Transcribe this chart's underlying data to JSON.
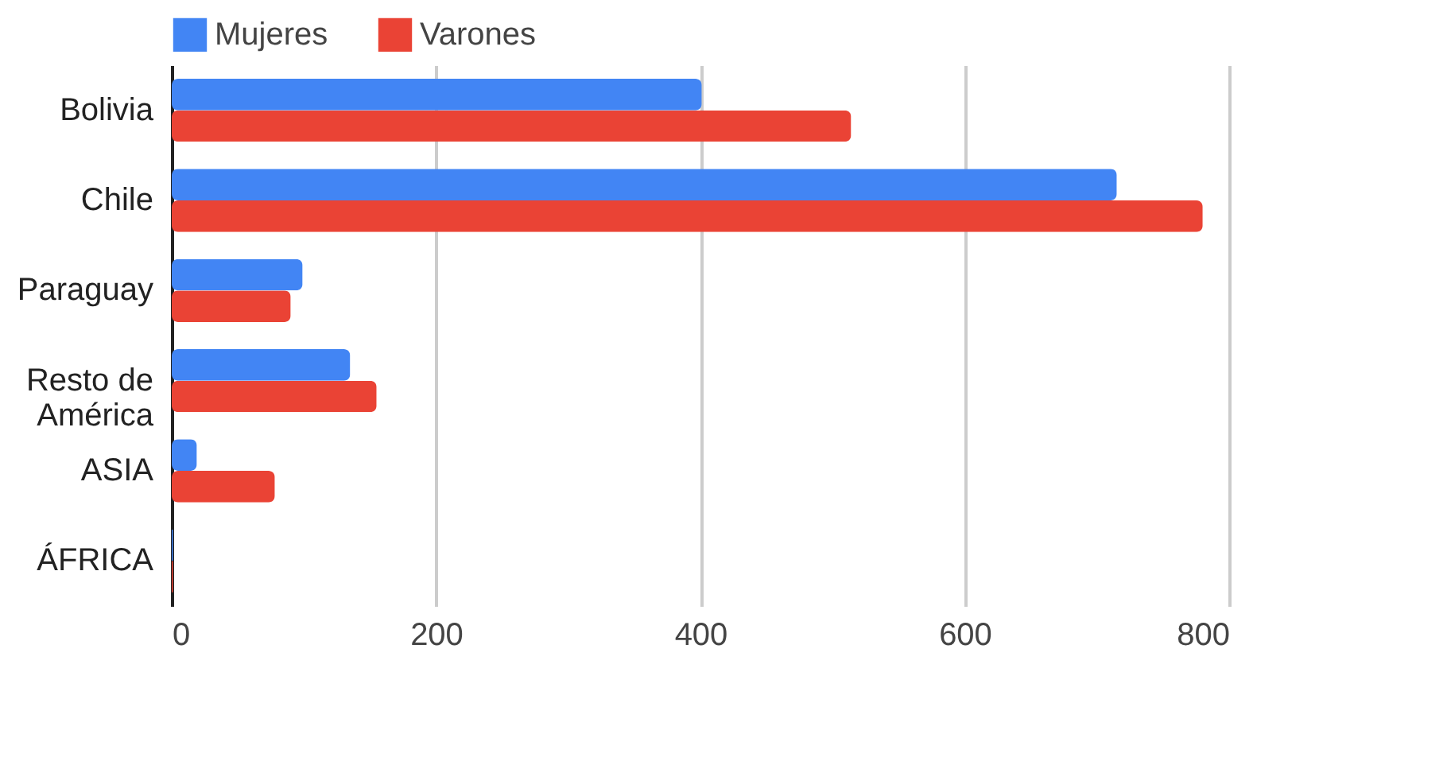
{
  "chart_data": {
    "type": "bar",
    "orientation": "horizontal",
    "categories": [
      "Bolivia",
      "Chile",
      "Paraguay",
      "Resto de\nAmérica",
      "ASIA",
      "ÁFRICA"
    ],
    "series": [
      {
        "name": "Mujeres",
        "color": "#4285f4",
        "values": [
          401,
          715,
          99,
          135,
          19,
          1
        ]
      },
      {
        "name": "Varones",
        "color": "#ea4335",
        "values": [
          514,
          780,
          90,
          155,
          78,
          1
        ]
      }
    ],
    "xlim": [
      0,
      800
    ],
    "xticks": [
      0,
      200,
      400,
      600,
      800
    ],
    "grid": "x",
    "legend": "top"
  }
}
